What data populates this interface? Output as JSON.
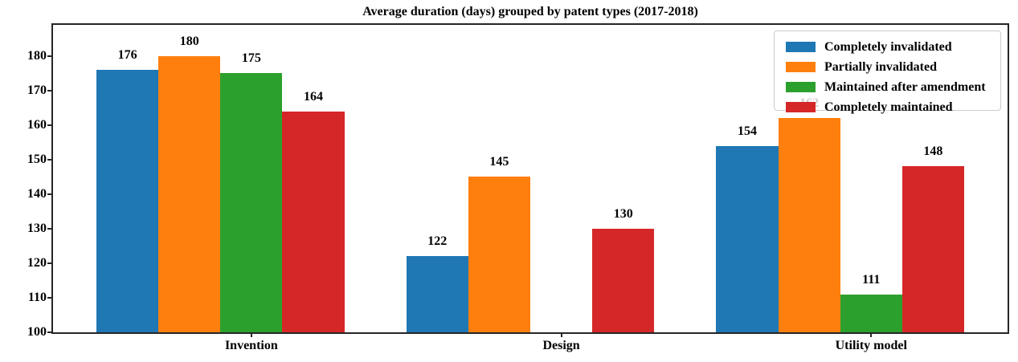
{
  "chart_data": {
    "type": "bar",
    "title": "Average duration (days) grouped by patent types (2017-2018)",
    "categories": [
      "Invention",
      "Design",
      "Utility model"
    ],
    "x_positions": [
      0,
      1,
      2
    ],
    "series": [
      {
        "name": "Completely invalidated",
        "color": "#1f77b4",
        "values": [
          176,
          122,
          154
        ]
      },
      {
        "name": "Partially invalidated",
        "color": "#ff7f0e",
        "values": [
          180,
          145,
          162
        ]
      },
      {
        "name": "Maintained after amendment",
        "color": "#2ca02c",
        "values": [
          175,
          null,
          111
        ]
      },
      {
        "name": "Completely maintained",
        "color": "#d62728",
        "values": [
          164,
          130,
          148
        ]
      }
    ],
    "bar_width_units": 0.2,
    "bar_offsets_units": [
      -0.4,
      -0.2,
      0,
      0.2
    ],
    "xlim": [
      -0.64,
      2.44
    ],
    "ylim": [
      100,
      189
    ],
    "yticks": [
      100,
      110,
      120,
      130,
      140,
      150,
      160,
      170,
      180
    ],
    "value_labels_shown": true,
    "grid": false,
    "legend_position": "upper right",
    "axis_color": "#262626",
    "text_color": "#000000",
    "background_color": "#ffffff"
  }
}
